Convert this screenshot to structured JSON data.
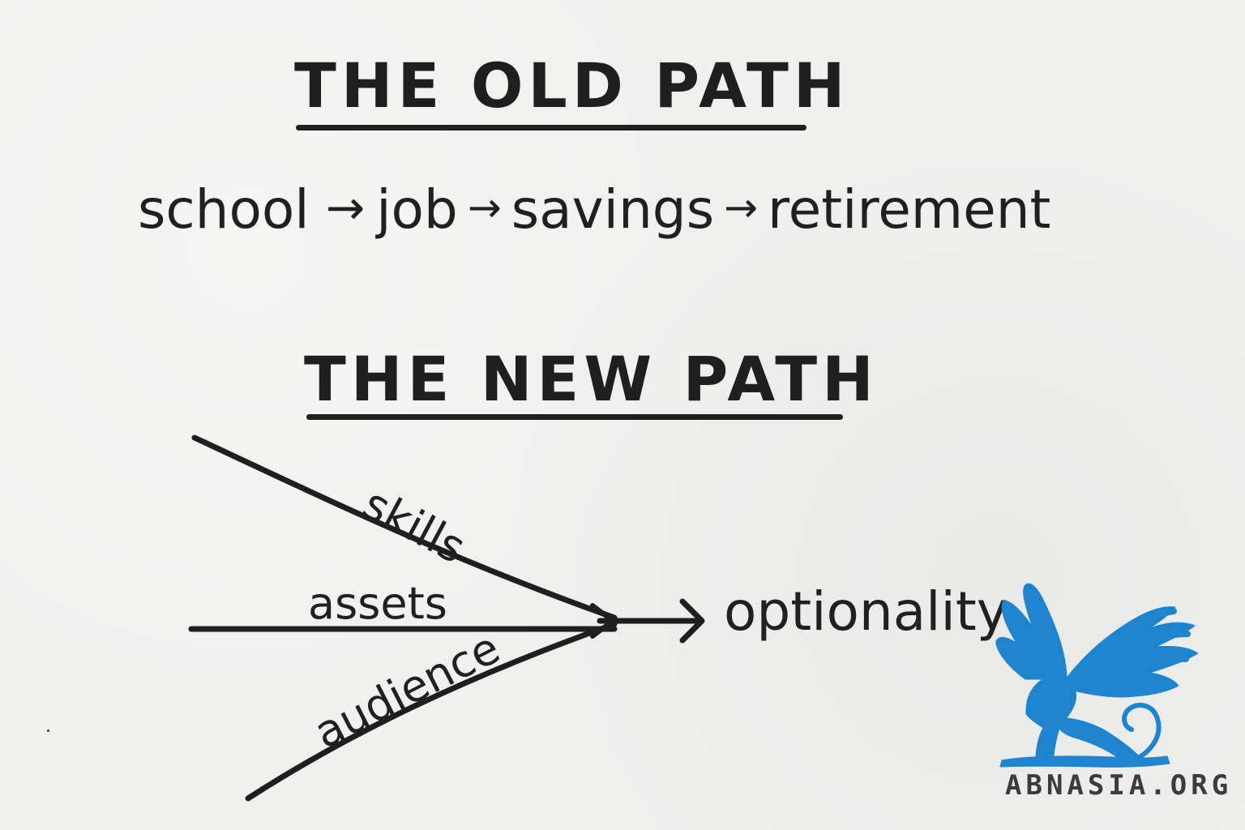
{
  "old_path": {
    "heading": "THE OLD PATH",
    "steps": [
      "school",
      "job",
      "savings",
      "retirement"
    ],
    "arrow_glyph": "→"
  },
  "new_path": {
    "heading": "THE NEW PATH",
    "branches": [
      "skills",
      "assets",
      "audience"
    ],
    "outcome": "optionality",
    "arrow_glyph": "→"
  },
  "logo": {
    "site_name": "ABNASIA.ORG",
    "color": "#1f84cf",
    "icon": "griffin-icon"
  },
  "colors": {
    "background": "#f0f0ef",
    "ink": "#1f1f1f",
    "accent": "#1f84cf"
  }
}
